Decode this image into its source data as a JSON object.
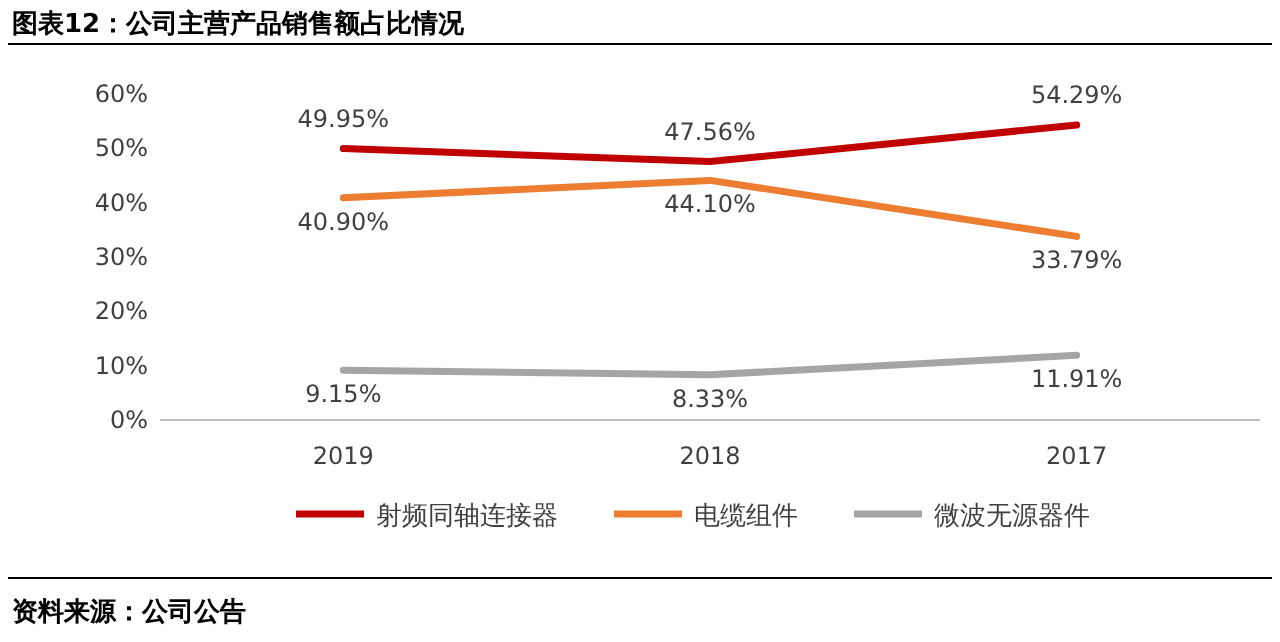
{
  "chart_data": {
    "type": "line",
    "title": "图表12：公司主营产品销售额占比情况",
    "categories": [
      "2019",
      "2018",
      "2017"
    ],
    "series": [
      {
        "name": "射频同轴连接器",
        "color": "#c00000",
        "values": [
          49.95,
          47.56,
          54.29
        ],
        "value_labels": [
          "49.95%",
          "47.56%",
          "54.29%"
        ]
      },
      {
        "name": "电缆组件",
        "color": "#ed7d31",
        "values": [
          40.9,
          44.1,
          33.79
        ],
        "value_labels": [
          "40.90%",
          "44.10%",
          "33.79%"
        ]
      },
      {
        "name": "微波无源器件",
        "color": "#a5a5a5",
        "values": [
          9.15,
          8.33,
          11.91
        ],
        "value_labels": [
          "9.15%",
          "8.33%",
          "11.91%"
        ]
      }
    ],
    "ylim": [
      0,
      60
    ],
    "yticks": [
      {
        "value": 0,
        "label": "0%"
      },
      {
        "value": 10,
        "label": "10%"
      },
      {
        "value": 20,
        "label": "20%"
      },
      {
        "value": 30,
        "label": "30%"
      },
      {
        "value": 40,
        "label": "40%"
      },
      {
        "value": 50,
        "label": "50%"
      },
      {
        "value": 60,
        "label": "60%"
      }
    ],
    "legend": "bottom",
    "marker": "none",
    "line_style": "solid",
    "grid": false,
    "annotations": [
      "资料来源：公司公告"
    ]
  }
}
